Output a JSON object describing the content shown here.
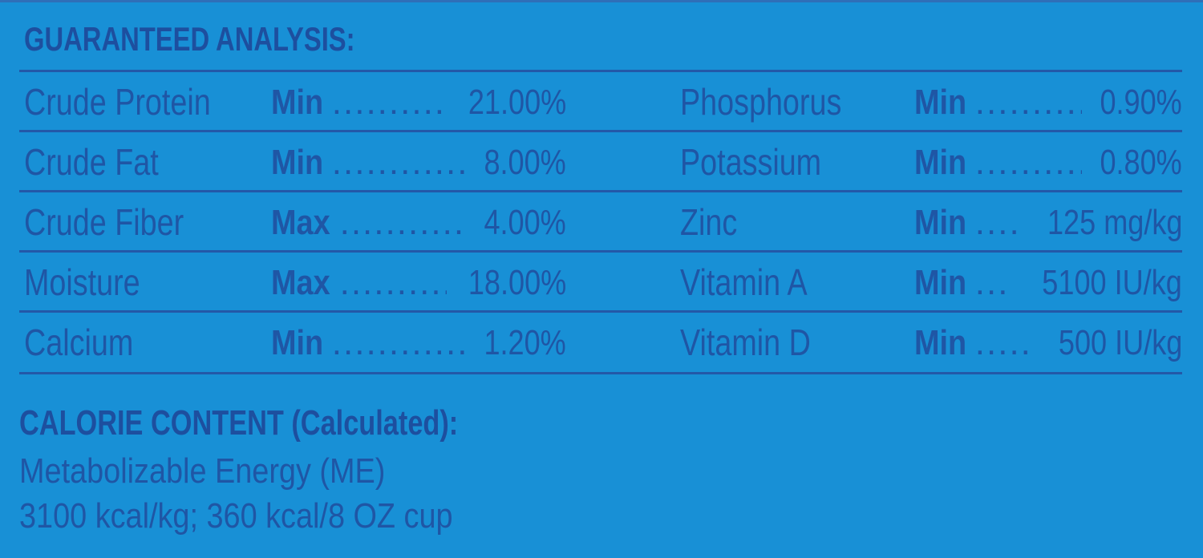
{
  "guaranteed_analysis": {
    "heading": "GUARANTEED ANALYSIS:",
    "left_column": [
      {
        "name": "Crude Protein",
        "qualifier": "Min",
        "dots": "..................",
        "value": "21.00%"
      },
      {
        "name": "Crude Fat",
        "qualifier": "Min",
        "dots": "...................",
        "value": "8.00%"
      },
      {
        "name": "Crude Fiber",
        "qualifier": "Max",
        "dots": "..................",
        "value": "4.00%"
      },
      {
        "name": "Moisture",
        "qualifier": "Max",
        "dots": ".................",
        "value": "18.00%"
      },
      {
        "name": "Calcium",
        "qualifier": "Min",
        "dots": "....................",
        "value": "1.20%"
      }
    ],
    "right_column": [
      {
        "name": "Phosphorus",
        "qualifier": "Min",
        "dots": "..................",
        "value": "0.90%"
      },
      {
        "name": "Potassium",
        "qualifier": "Min",
        "dots": "..................",
        "value": "0.80%"
      },
      {
        "name": "Zinc",
        "qualifier": "Min",
        "dots": "..........",
        "value": "125 mg/kg"
      },
      {
        "name": "Vitamin A",
        "qualifier": "Min",
        "dots": ".........",
        "value": "5100 IU/kg"
      },
      {
        "name": "Vitamin D",
        "qualifier": "Min",
        "dots": "...........",
        "value": "500 IU/kg"
      }
    ]
  },
  "calorie_content": {
    "heading": "CALORIE CONTENT (Calculated):",
    "line1": "Metabolizable Energy (ME)",
    "line2": "3100 kcal/kg; 360 kcal/8 OZ cup"
  },
  "colors": {
    "background": "#1890d6",
    "text": "#1f56a5",
    "rule": "#2358a8"
  }
}
